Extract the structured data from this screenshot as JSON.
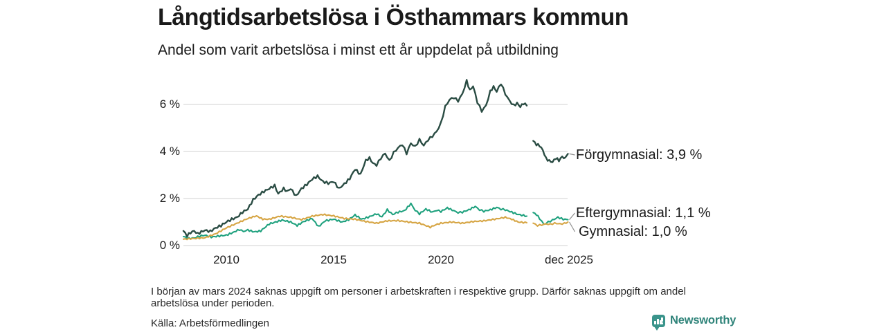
{
  "title": "Långtidsarbetslösa i Östhammars kommun",
  "subtitle": "Andel som varit arbetslösa i minst ett år uppdelat på utbildning",
  "note": "I början av mars 2024 saknas uppgift om personer i arbetskraften i respektive grupp. Därför saknas uppgift om andel arbetslösa under perioden.",
  "source": "Källa: Arbetsförmedlingen",
  "branding": {
    "name": "Newsworthy",
    "icon": "newsworthy-bubble-barchart-icon",
    "color": "#2e8379"
  },
  "colors": {
    "forgymnasial": "#2a4c43",
    "eftergymnasial": "#1fa17e",
    "gymnasial": "#d6a544",
    "gridline": "#d9d9d9",
    "connector": "#8f8f8f"
  },
  "chart_data": {
    "type": "line",
    "title": "Långtidsarbetslösa i Östhammars kommun",
    "subtitle": "Andel som varit arbetslösa i minst ett år uppdelat på utbildning",
    "unit": "%",
    "grid": true,
    "legend_position": "direct-labels-right",
    "x_axis": {
      "range": [
        2008,
        2025.95
      ],
      "ticks": [
        {
          "label": "2010",
          "year": 2010
        },
        {
          "label": "2015",
          "year": 2015
        },
        {
          "label": "2020",
          "year": 2020
        },
        {
          "label": "dec 2025",
          "year": 2025.92
        }
      ]
    },
    "y_axis": {
      "range": [
        0,
        7.3
      ],
      "ticks": [
        {
          "label": "0 %",
          "value": 0
        },
        {
          "label": "2 %",
          "value": 2
        },
        {
          "label": "4 %",
          "value": 4
        },
        {
          "label": "6 %",
          "value": 6
        }
      ]
    },
    "data_gap": {
      "period": "mars 2024",
      "from": 2024.05,
      "to": 2024.28
    },
    "series": [
      {
        "name": "Eftergymnasial",
        "label": "Eftergymnasial: 1,1 %",
        "end_value": 1.1,
        "color": "#1fa17e",
        "segments": [
          [
            [
              2008.0,
              0.38
            ],
            [
              2008.25,
              0.3
            ],
            [
              2008.5,
              0.32
            ],
            [
              2008.75,
              0.4
            ],
            [
              2009.0,
              0.44
            ],
            [
              2009.3,
              0.36
            ],
            [
              2009.6,
              0.4
            ],
            [
              2010.0,
              0.44
            ],
            [
              2010.3,
              0.55
            ],
            [
              2010.6,
              0.68
            ],
            [
              2010.8,
              0.6
            ],
            [
              2011.0,
              0.66
            ],
            [
              2011.3,
              0.58
            ],
            [
              2011.6,
              0.62
            ],
            [
              2012.0,
              0.92
            ],
            [
              2012.3,
              1.0
            ],
            [
              2012.6,
              1.08
            ],
            [
              2013.0,
              1.0
            ],
            [
              2013.3,
              0.85
            ],
            [
              2013.6,
              1.02
            ],
            [
              2014.0,
              1.15
            ],
            [
              2014.3,
              0.8
            ],
            [
              2014.6,
              1.05
            ],
            [
              2015.0,
              1.12
            ],
            [
              2015.4,
              1.0
            ],
            [
              2015.7,
              1.1
            ],
            [
              2016.0,
              1.3
            ],
            [
              2016.3,
              1.12
            ],
            [
              2016.6,
              1.2
            ],
            [
              2017.0,
              1.35
            ],
            [
              2017.25,
              1.22
            ],
            [
              2017.5,
              1.52
            ],
            [
              2017.75,
              1.32
            ],
            [
              2018.0,
              1.42
            ],
            [
              2018.3,
              1.48
            ],
            [
              2018.6,
              1.78
            ],
            [
              2018.8,
              1.5
            ],
            [
              2019.0,
              1.35
            ],
            [
              2019.3,
              1.55
            ],
            [
              2019.6,
              1.42
            ],
            [
              2019.8,
              1.5
            ],
            [
              2020.0,
              1.45
            ],
            [
              2020.3,
              1.6
            ],
            [
              2020.6,
              1.48
            ],
            [
              2020.8,
              1.4
            ],
            [
              2021.0,
              1.42
            ],
            [
              2021.3,
              1.52
            ],
            [
              2021.6,
              1.66
            ],
            [
              2021.8,
              1.52
            ],
            [
              2022.0,
              1.46
            ],
            [
              2022.3,
              1.52
            ],
            [
              2022.6,
              1.62
            ],
            [
              2022.8,
              1.55
            ],
            [
              2023.0,
              1.52
            ],
            [
              2023.3,
              1.42
            ],
            [
              2023.6,
              1.32
            ],
            [
              2023.85,
              1.28
            ],
            [
              2024.0,
              1.25
            ]
          ],
          [
            [
              2024.3,
              1.4
            ],
            [
              2024.45,
              1.32
            ],
            [
              2024.6,
              1.15
            ],
            [
              2024.8,
              0.9
            ],
            [
              2025.0,
              1.0
            ],
            [
              2025.2,
              1.08
            ],
            [
              2025.45,
              1.2
            ],
            [
              2025.7,
              1.12
            ],
            [
              2025.92,
              1.1
            ]
          ]
        ]
      },
      {
        "name": "Gymnasial",
        "label": "Gymnasial: 1,0 %",
        "end_value": 1.0,
        "color": "#d6a544",
        "segments": [
          [
            [
              2008.0,
              0.27
            ],
            [
              2008.5,
              0.3
            ],
            [
              2009.0,
              0.33
            ],
            [
              2009.5,
              0.5
            ],
            [
              2010.0,
              0.75
            ],
            [
              2010.5,
              0.95
            ],
            [
              2011.0,
              1.15
            ],
            [
              2011.4,
              1.26
            ],
            [
              2011.7,
              1.12
            ],
            [
              2012.0,
              1.12
            ],
            [
              2012.5,
              1.25
            ],
            [
              2013.0,
              1.2
            ],
            [
              2013.5,
              1.1
            ],
            [
              2014.0,
              1.25
            ],
            [
              2014.5,
              1.32
            ],
            [
              2015.0,
              1.26
            ],
            [
              2015.5,
              1.15
            ],
            [
              2016.0,
              1.12
            ],
            [
              2016.5,
              1.02
            ],
            [
              2017.0,
              0.95
            ],
            [
              2017.5,
              1.05
            ],
            [
              2018.0,
              1.06
            ],
            [
              2018.5,
              1.0
            ],
            [
              2019.0,
              0.95
            ],
            [
              2019.5,
              0.78
            ],
            [
              2019.75,
              0.88
            ],
            [
              2020.0,
              0.95
            ],
            [
              2020.5,
              1.0
            ],
            [
              2021.0,
              0.95
            ],
            [
              2021.5,
              1.02
            ],
            [
              2022.0,
              1.05
            ],
            [
              2022.5,
              1.12
            ],
            [
              2023.0,
              1.2
            ],
            [
              2023.3,
              1.12
            ],
            [
              2023.6,
              1.0
            ],
            [
              2024.0,
              0.97
            ]
          ],
          [
            [
              2024.3,
              0.95
            ],
            [
              2024.5,
              0.85
            ],
            [
              2024.7,
              0.88
            ],
            [
              2024.9,
              0.92
            ],
            [
              2025.1,
              0.9
            ],
            [
              2025.3,
              0.95
            ],
            [
              2025.55,
              0.92
            ],
            [
              2025.75,
              0.94
            ],
            [
              2025.92,
              1.0
            ]
          ]
        ]
      },
      {
        "name": "Förgymnasial",
        "label": "Förgymnasial: 3,9 %",
        "end_value": 3.9,
        "color": "#2a4c43",
        "segments": [
          [
            [
              2008.0,
              0.62
            ],
            [
              2008.17,
              0.42
            ],
            [
              2008.33,
              0.55
            ],
            [
              2008.5,
              0.62
            ],
            [
              2008.67,
              0.5
            ],
            [
              2008.83,
              0.58
            ],
            [
              2009.0,
              0.65
            ],
            [
              2009.25,
              0.6
            ],
            [
              2009.5,
              0.75
            ],
            [
              2009.75,
              0.85
            ],
            [
              2010.0,
              1.0
            ],
            [
              2010.25,
              1.12
            ],
            [
              2010.5,
              1.2
            ],
            [
              2010.75,
              1.42
            ],
            [
              2011.0,
              1.55
            ],
            [
              2011.25,
              1.95
            ],
            [
              2011.5,
              2.15
            ],
            [
              2011.75,
              2.3
            ],
            [
              2012.0,
              2.42
            ],
            [
              2012.25,
              2.55
            ],
            [
              2012.42,
              2.2
            ],
            [
              2012.67,
              2.42
            ],
            [
              2012.83,
              2.3
            ],
            [
              2013.0,
              2.42
            ],
            [
              2013.25,
              2.1
            ],
            [
              2013.5,
              2.42
            ],
            [
              2013.75,
              2.6
            ],
            [
              2014.0,
              2.82
            ],
            [
              2014.25,
              2.95
            ],
            [
              2014.5,
              2.72
            ],
            [
              2014.75,
              2.65
            ],
            [
              2015.0,
              2.72
            ],
            [
              2015.25,
              2.42
            ],
            [
              2015.5,
              2.62
            ],
            [
              2015.75,
              2.85
            ],
            [
              2016.0,
              3.25
            ],
            [
              2016.25,
              3.02
            ],
            [
              2016.5,
              3.62
            ],
            [
              2016.67,
              3.72
            ],
            [
              2016.83,
              3.5
            ],
            [
              2017.0,
              3.42
            ],
            [
              2017.2,
              3.72
            ],
            [
              2017.4,
              3.92
            ],
            [
              2017.6,
              3.6
            ],
            [
              2017.8,
              3.95
            ],
            [
              2018.0,
              4.15
            ],
            [
              2018.2,
              4.3
            ],
            [
              2018.4,
              3.92
            ],
            [
              2018.6,
              4.35
            ],
            [
              2018.8,
              4.2
            ],
            [
              2019.0,
              4.5
            ],
            [
              2019.2,
              4.25
            ],
            [
              2019.4,
              4.5
            ],
            [
              2019.6,
              4.65
            ],
            [
              2019.8,
              4.85
            ],
            [
              2020.0,
              5.2
            ],
            [
              2020.2,
              5.9
            ],
            [
              2020.4,
              6.2
            ],
            [
              2020.6,
              6.3
            ],
            [
              2020.8,
              6.15
            ],
            [
              2021.0,
              6.45
            ],
            [
              2021.2,
              7.0
            ],
            [
              2021.35,
              6.6
            ],
            [
              2021.5,
              6.78
            ],
            [
              2021.7,
              6.1
            ],
            [
              2021.9,
              5.72
            ],
            [
              2022.1,
              5.95
            ],
            [
              2022.3,
              6.55
            ],
            [
              2022.45,
              6.75
            ],
            [
              2022.6,
              6.55
            ],
            [
              2022.8,
              6.9
            ],
            [
              2023.0,
              6.45
            ],
            [
              2023.2,
              6.15
            ],
            [
              2023.4,
              5.95
            ],
            [
              2023.55,
              6.05
            ],
            [
              2023.7,
              5.9
            ],
            [
              2023.85,
              6.05
            ],
            [
              2024.0,
              5.95
            ]
          ],
          [
            [
              2024.3,
              4.45
            ],
            [
              2024.45,
              4.3
            ],
            [
              2024.6,
              4.25
            ],
            [
              2024.75,
              4.05
            ],
            [
              2024.9,
              3.7
            ],
            [
              2025.05,
              3.6
            ],
            [
              2025.2,
              3.55
            ],
            [
              2025.35,
              3.72
            ],
            [
              2025.5,
              3.62
            ],
            [
              2025.65,
              3.78
            ],
            [
              2025.8,
              3.7
            ],
            [
              2025.92,
              3.9
            ]
          ]
        ]
      }
    ]
  }
}
